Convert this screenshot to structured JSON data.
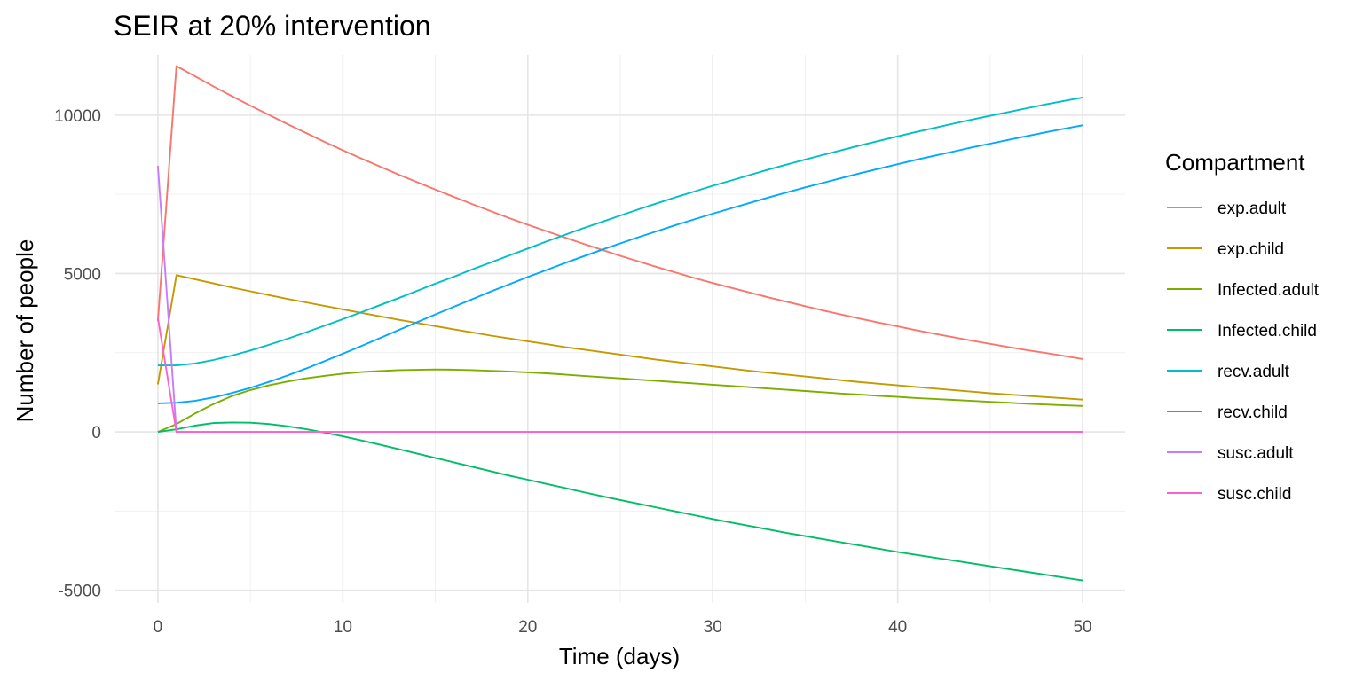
{
  "chart_data": {
    "type": "line",
    "title": "SEIR at 20% intervention",
    "xlabel": "Time (days)",
    "ylabel": "Number of people",
    "xlim": [
      -2.3,
      52.3
    ],
    "ylim": [
      -5400,
      11900
    ],
    "x_ticks": [
      0,
      10,
      20,
      30,
      40,
      50
    ],
    "x_tick_labels": [
      "0",
      "10",
      "20",
      "30",
      "40",
      "50"
    ],
    "y_ticks": [
      -5000,
      0,
      5000,
      10000
    ],
    "y_tick_labels": [
      "-5000",
      "0",
      "5000",
      "10000"
    ],
    "grid": true,
    "legend": {
      "title": "Compartment",
      "position": "right"
    },
    "x": [
      0,
      1,
      2,
      3,
      4,
      5,
      6,
      7,
      8,
      9,
      10,
      11,
      12,
      13,
      14,
      15,
      16,
      17,
      18,
      19,
      20,
      21,
      22,
      23,
      24,
      25,
      26,
      27,
      28,
      29,
      30,
      31,
      32,
      33,
      34,
      35,
      36,
      37,
      38,
      39,
      40,
      41,
      42,
      43,
      44,
      45,
      46,
      47,
      48,
      49,
      50
    ],
    "series": [
      {
        "name": "exp.adult",
        "color": "#F8766D",
        "values": [
          3500,
          11550,
          11230,
          10910,
          10600,
          10300,
          10010,
          9720,
          9440,
          9160,
          8890,
          8630,
          8380,
          8130,
          7890,
          7650,
          7420,
          7190,
          6970,
          6750,
          6540,
          6340,
          6140,
          5940,
          5750,
          5560,
          5380,
          5200,
          5030,
          4860,
          4700,
          4550,
          4400,
          4250,
          4110,
          3970,
          3830,
          3700,
          3570,
          3450,
          3330,
          3210,
          3100,
          2990,
          2880,
          2780,
          2680,
          2580,
          2490,
          2400,
          2300
        ]
      },
      {
        "name": "exp.child",
        "color": "#C49A00",
        "values": [
          1500,
          4950,
          4820,
          4690,
          4560,
          4440,
          4320,
          4200,
          4090,
          3980,
          3870,
          3760,
          3650,
          3540,
          3440,
          3340,
          3240,
          3140,
          3040,
          2950,
          2860,
          2770,
          2680,
          2600,
          2520,
          2440,
          2360,
          2280,
          2210,
          2140,
          2070,
          2000,
          1930,
          1870,
          1810,
          1750,
          1690,
          1630,
          1570,
          1520,
          1470,
          1420,
          1370,
          1320,
          1270,
          1220,
          1180,
          1140,
          1100,
          1060,
          1020
        ]
      },
      {
        "name": "Infected.adult",
        "color": "#7CAE00",
        "values": [
          0,
          250,
          580,
          880,
          1130,
          1320,
          1470,
          1590,
          1690,
          1770,
          1840,
          1890,
          1920,
          1950,
          1960,
          1970,
          1965,
          1950,
          1930,
          1910,
          1880,
          1850,
          1810,
          1770,
          1730,
          1690,
          1650,
          1610,
          1570,
          1530,
          1490,
          1450,
          1410,
          1370,
          1330,
          1290,
          1250,
          1210,
          1175,
          1140,
          1105,
          1070,
          1040,
          1010,
          980,
          950,
          920,
          890,
          865,
          840,
          820
        ]
      },
      {
        "name": "Infected.child",
        "color": "#00BE67",
        "values": [
          0,
          80,
          200,
          280,
          300,
          290,
          250,
          180,
          90,
          -20,
          -140,
          -270,
          -400,
          -540,
          -680,
          -820,
          -960,
          -1100,
          -1240,
          -1380,
          -1510,
          -1640,
          -1770,
          -1900,
          -2030,
          -2150,
          -2270,
          -2390,
          -2510,
          -2630,
          -2750,
          -2860,
          -2970,
          -3080,
          -3190,
          -3290,
          -3390,
          -3490,
          -3590,
          -3690,
          -3790,
          -3880,
          -3970,
          -4060,
          -4150,
          -4240,
          -4330,
          -4420,
          -4510,
          -4600,
          -4690
        ]
      },
      {
        "name": "recv.adult",
        "color": "#00BFC4",
        "values": [
          2100,
          2100,
          2160,
          2270,
          2410,
          2570,
          2750,
          2940,
          3140,
          3350,
          3560,
          3780,
          4000,
          4220,
          4450,
          4680,
          4900,
          5130,
          5350,
          5570,
          5790,
          6010,
          6220,
          6430,
          6630,
          6830,
          7030,
          7220,
          7410,
          7590,
          7770,
          7940,
          8110,
          8280,
          8440,
          8600,
          8750,
          8900,
          9050,
          9190,
          9330,
          9470,
          9600,
          9730,
          9860,
          9980,
          10100,
          10220,
          10340,
          10450,
          10560
        ]
      },
      {
        "name": "recv.child",
        "color": "#00A9FF",
        "values": [
          900,
          920,
          980,
          1090,
          1230,
          1390,
          1580,
          1780,
          2000,
          2230,
          2470,
          2710,
          2960,
          3210,
          3460,
          3710,
          3950,
          4190,
          4430,
          4660,
          4890,
          5110,
          5330,
          5540,
          5750,
          5950,
          6150,
          6340,
          6530,
          6710,
          6890,
          7060,
          7230,
          7400,
          7560,
          7720,
          7870,
          8020,
          8170,
          8310,
          8450,
          8590,
          8720,
          8850,
          8980,
          9100,
          9220,
          9340,
          9460,
          9570,
          9680
        ]
      },
      {
        "name": "susc.adult",
        "color": "#C77CFF",
        "values": [
          8400,
          0,
          0,
          0,
          0,
          0,
          0,
          0,
          0,
          0,
          0,
          0,
          0,
          0,
          0,
          0,
          0,
          0,
          0,
          0,
          0,
          0,
          0,
          0,
          0,
          0,
          0,
          0,
          0,
          0,
          0,
          0,
          0,
          0,
          0,
          0,
          0,
          0,
          0,
          0,
          0,
          0,
          0,
          0,
          0,
          0,
          0,
          0,
          0,
          0,
          0
        ]
      },
      {
        "name": "susc.child",
        "color": "#FF61CC",
        "values": [
          3600,
          0,
          0,
          0,
          0,
          0,
          0,
          0,
          0,
          0,
          0,
          0,
          0,
          0,
          0,
          0,
          0,
          0,
          0,
          0,
          0,
          0,
          0,
          0,
          0,
          0,
          0,
          0,
          0,
          0,
          0,
          0,
          0,
          0,
          0,
          0,
          0,
          0,
          0,
          0,
          0,
          0,
          0,
          0,
          0,
          0,
          0,
          0,
          0,
          0,
          0
        ]
      }
    ]
  }
}
